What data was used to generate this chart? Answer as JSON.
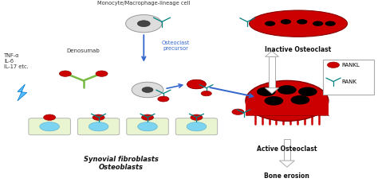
{
  "bg_color": "#ffffff",
  "rankl_color": "#cc0000",
  "rank_color": "#008080",
  "blue": "#3366cc",
  "cell_fill": "#e8f5d0",
  "cell_nucleus": "#7dd4f0",
  "green_antibody": "#77bb44",
  "gray_cell": "#cccccc",
  "gray_dark": "#888888",
  "inactive_label": "Inactive Osteoclast",
  "active_label": "Active Osteoclast",
  "bone_label": "Bone erosion",
  "synovial_label": "Synovial fibroblasts\nOsteoblasts",
  "mono_label": "Monocyte/Macrophage-lineage cell",
  "denosumab_label": "Denosumab",
  "precursor_label": "Osteoclast\nprecursor",
  "tnf_label": "TNF-α\nIL-6\nIL-17 etc.",
  "rankl_legend": "RANKL",
  "rank_legend": "RANK",
  "fig_w": 4.74,
  "fig_h": 2.34,
  "dpi": 100
}
